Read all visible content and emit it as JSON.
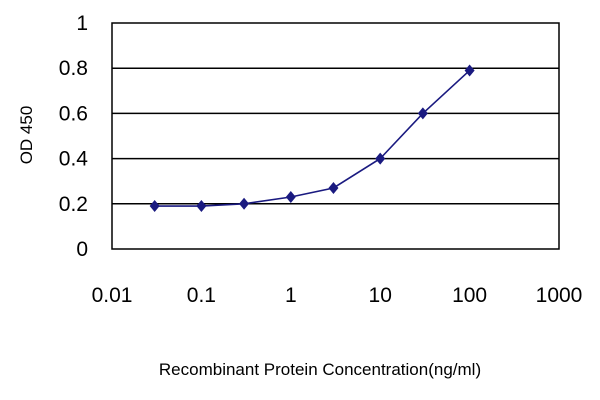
{
  "chart_data": {
    "type": "line",
    "title": "",
    "xlabel": "Recombinant Protein Concentration(ng/ml)",
    "ylabel": "OD 450",
    "x_scale": "log",
    "xlim": [
      0.01,
      1000
    ],
    "ylim": [
      0,
      1
    ],
    "x_ticks": [
      "0.01",
      "0.1",
      "1",
      "10",
      "100",
      "1000"
    ],
    "y_ticks": [
      "0",
      "0.2",
      "0.4",
      "0.6",
      "0.8",
      "1"
    ],
    "grid": "horizontal",
    "legend": "none",
    "series": [
      {
        "color": "#1a1a80",
        "x": [
          0.03,
          0.1,
          0.3,
          1,
          3,
          10,
          30,
          100
        ],
        "y": [
          0.19,
          0.19,
          0.2,
          0.23,
          0.27,
          0.4,
          0.6,
          0.79
        ]
      }
    ]
  }
}
